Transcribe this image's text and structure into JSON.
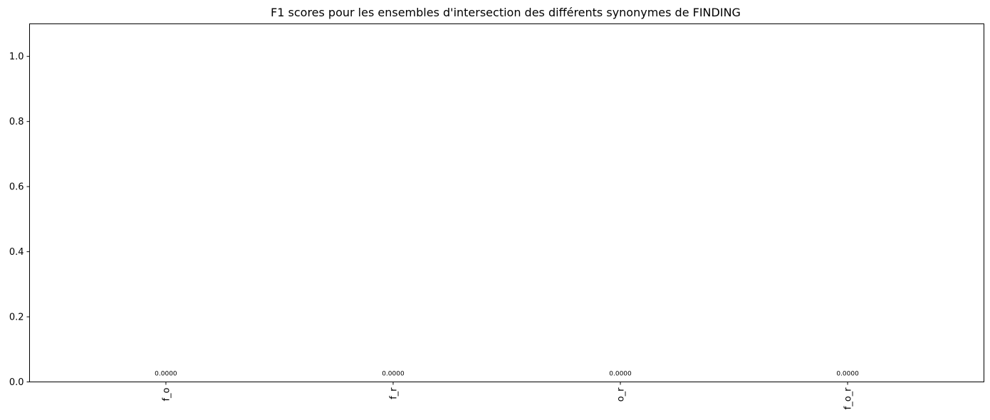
{
  "chart_data": {
    "type": "bar",
    "title": "F1 scores pour les ensembles d'intersection des différents synonymes de FINDING",
    "xlabel": "",
    "ylabel": "",
    "categories": [
      "f_o",
      "f_r",
      "o_r",
      "f_o_r"
    ],
    "values": [
      0.0,
      0.0,
      0.0,
      0.0
    ],
    "data_labels": [
      "0.0000",
      "0.0000",
      "0.0000",
      "0.0000"
    ],
    "ylim": [
      0,
      1.1
    ],
    "yticks": [
      "0.0",
      "0.2",
      "0.4",
      "0.6",
      "0.8",
      "1.0"
    ],
    "ytick_values": [
      0,
      0.2,
      0.4,
      0.6,
      0.8,
      1.0
    ],
    "grid": false,
    "x_tick_rotation": "vertical",
    "bar_color": "#1f77b4"
  }
}
